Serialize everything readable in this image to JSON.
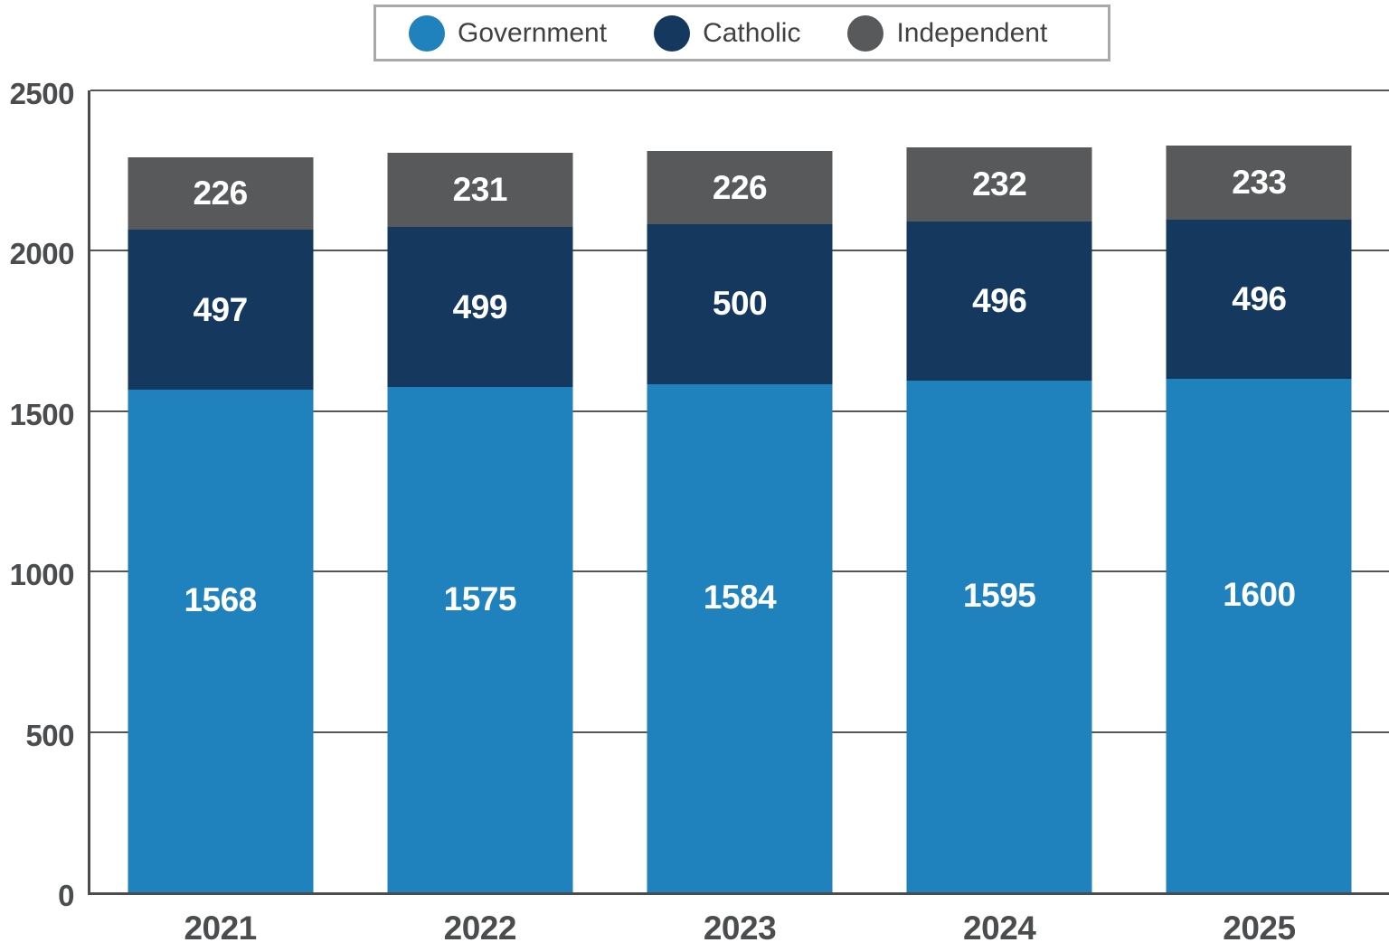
{
  "chart_data": {
    "type": "bar",
    "stacked": true,
    "title": "",
    "xlabel": "",
    "ylabel": "",
    "categories": [
      "2021",
      "2022",
      "2023",
      "2024",
      "2025"
    ],
    "series": [
      {
        "name": "Government",
        "color": "#2082bc",
        "values": [
          1568,
          1575,
          1584,
          1595,
          1600
        ]
      },
      {
        "name": "Catholic",
        "color": "#15395e",
        "values": [
          497,
          499,
          500,
          496,
          496
        ]
      },
      {
        "name": "Independent",
        "color": "#58595b",
        "values": [
          226,
          231,
          226,
          232,
          233
        ]
      }
    ],
    "ylim": [
      0,
      2500
    ],
    "yticks": [
      0,
      500,
      1000,
      1500,
      2000,
      2500
    ],
    "grid": true,
    "legend_position": "top",
    "colors": {
      "axis": "#4b4c4e",
      "gridline": "#55565a",
      "legend_border": "#a7a9ac",
      "legend_text": "#414042",
      "bar_label_text": "#ffffff"
    }
  }
}
